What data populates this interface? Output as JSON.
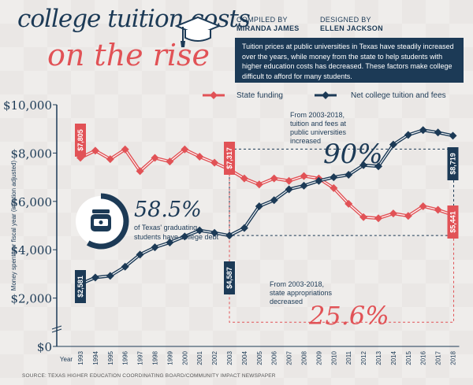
{
  "title_line1": "college tuition costs",
  "title_line2": "on the rise",
  "compiled_by_label": "COMPILED BY",
  "compiled_by_name": "MIRANDA JAMES",
  "designed_by_label": "DESIGNED BY",
  "designed_by_name": "ELLEN JACKSON",
  "intro_text": "Tuition prices at public universities in Texas have steadily increased over the years, while money from the state to help students with higher education costs has decreased. These factors make college difficult to afford for many students.",
  "source": "SOURCE: TEXAS HIGHER EDUCATION COORDINATING BOARD/COMMUNITY IMPACT NEWSPAPER",
  "colors": {
    "red": "#e15256",
    "navy": "#1c3a56"
  },
  "icons": [
    "graduation-cap-icon",
    "money-jar-icon"
  ],
  "debt_stat": {
    "percent": "58.5%",
    "text_line1": "of Texas' graduating",
    "text_line2": "students have college debt",
    "fraction": 0.585
  },
  "annotation_tuition": {
    "line1": "From 2003-2018,",
    "line2": "tuition and fees at",
    "line3": "public universities",
    "line4": "increased",
    "percent": "90%"
  },
  "annotation_state": {
    "line1": "From 2003-2018,",
    "line2": "state appropriations",
    "line3": "decreased",
    "percent": "25.6%"
  },
  "chart_data": {
    "type": "line",
    "ylabel": "Money spent per fiscal year (inflation adjusted)",
    "xlabel": "Year",
    "ylim": [
      0,
      10000
    ],
    "yticks": [
      "$0",
      "$2,000",
      "$4,000",
      "$6,000",
      "$8,000",
      "$10,000"
    ],
    "x": [
      "1993",
      "1994",
      "1995",
      "1996",
      "1997",
      "1998",
      "1999",
      "2000",
      "2001",
      "2002",
      "2003",
      "2004",
      "2005",
      "2006",
      "2007",
      "2008",
      "2009",
      "2010",
      "2011",
      "2012",
      "2013",
      "2014",
      "2015",
      "2016",
      "2017",
      "2018"
    ],
    "series": [
      {
        "name": "State funding",
        "color": "#e15256",
        "values": [
          7805,
          8100,
          7750,
          8150,
          7250,
          7800,
          7650,
          8150,
          7850,
          7600,
          7317,
          6950,
          6700,
          6950,
          6850,
          7050,
          6950,
          6550,
          5900,
          5350,
          5300,
          5500,
          5400,
          5800,
          5650,
          5441
        ],
        "labels": [
          {
            "year": "1993",
            "text": "$7,805"
          },
          {
            "year": "2003",
            "text": "$7,317"
          },
          {
            "year": "2018",
            "text": "$5,441"
          }
        ]
      },
      {
        "name": "Net college tuition and fees",
        "color": "#1c3a56",
        "values": [
          2581,
          2850,
          2920,
          3300,
          3800,
          4100,
          4300,
          4550,
          4800,
          4700,
          4587,
          4900,
          5800,
          6050,
          6500,
          6650,
          6850,
          7000,
          7100,
          7500,
          7450,
          8350,
          8750,
          8950,
          8850,
          8719
        ],
        "labels": [
          {
            "year": "1993",
            "text": "$2,581"
          },
          {
            "year": "2003",
            "text": "$4,587"
          },
          {
            "year": "2018",
            "text": "$8,719"
          }
        ]
      }
    ]
  }
}
